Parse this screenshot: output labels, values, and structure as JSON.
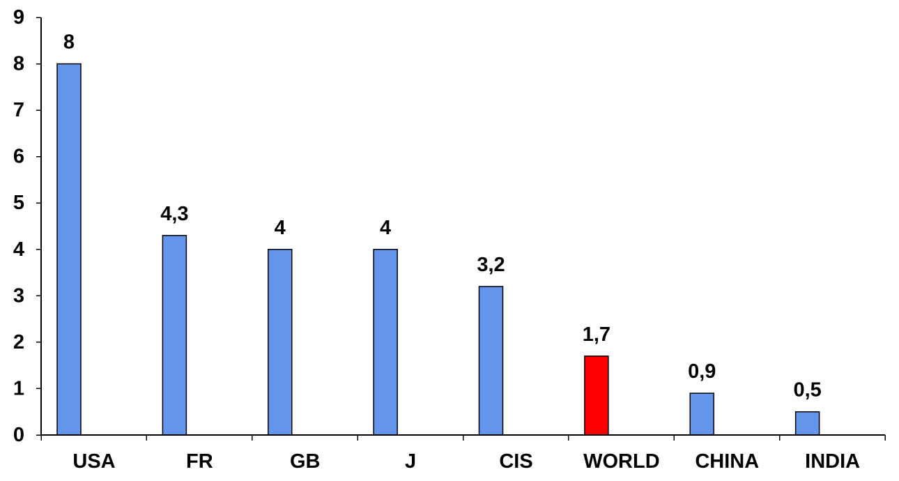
{
  "chart_data": {
    "type": "bar",
    "categories": [
      "USA",
      "FR",
      "GB",
      "J",
      "CIS",
      "WORLD",
      "CHINA",
      "INDIA"
    ],
    "values": [
      8,
      4.3,
      4,
      4,
      3.2,
      1.7,
      0.9,
      0.5
    ],
    "data_labels": [
      "8",
      "4,3",
      "4",
      "4",
      "3,2",
      "1,7",
      "0,9",
      "0,5"
    ],
    "ylim": [
      0,
      9
    ],
    "yticks": [
      0,
      1,
      2,
      3,
      4,
      5,
      6,
      7,
      8,
      9
    ],
    "title": "",
    "xlabel": "",
    "ylabel": "",
    "grid": false,
    "colors": {
      "default_bar": "#6495ED",
      "highlight_bar": "#FF0000",
      "highlight_category": "WORLD",
      "axis": "#000000"
    }
  }
}
